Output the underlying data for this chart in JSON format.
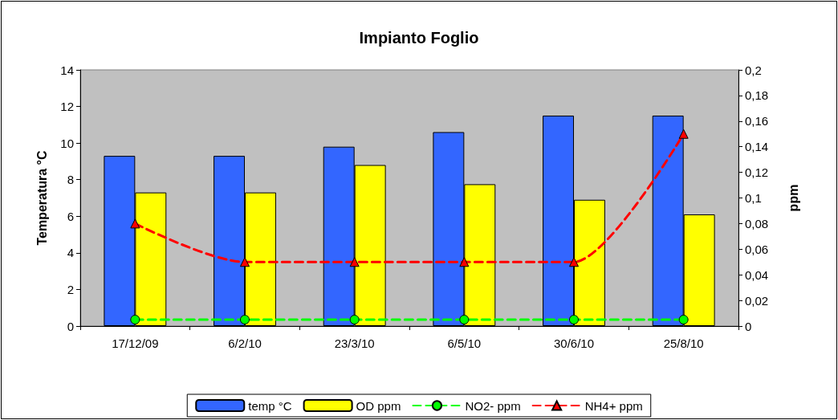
{
  "chart_data": {
    "type": "bar",
    "title": "Impianto Foglio",
    "ylabel": "Temperatura °C",
    "y2label": "ppm",
    "categories": [
      "17/12/09",
      "6/2/10",
      "23/3/10",
      "6/5/10",
      "30/6/10",
      "25/8/10"
    ],
    "series": [
      {
        "name": "temp °C",
        "color": "#3366ff",
        "values": [
          9.3,
          9.3,
          9.8,
          10.6,
          11.5,
          11.5
        ]
      },
      {
        "name": "OD ppm",
        "color": "#ffff00",
        "values": [
          7.3,
          7.3,
          8.8,
          7.75,
          6.9,
          6.1
        ]
      },
      {
        "name": "NO2- ppm",
        "type": "line",
        "axis": "y2",
        "color": "#00ff00",
        "marker": "circle",
        "line_style": "dashed",
        "values": [
          0.005,
          0.005,
          0.005,
          0.005,
          0.005,
          0.005
        ]
      },
      {
        "name": "NH4+ ppm",
        "type": "line",
        "axis": "y2",
        "color": "#ff0000",
        "marker": "triangle",
        "line_style": "dashed",
        "values": [
          0.08,
          0.05,
          0.05,
          0.05,
          0.05,
          0.15
        ]
      }
    ],
    "ylim": [
      0,
      14
    ],
    "yticks": [
      0,
      2,
      4,
      6,
      8,
      10,
      12,
      14
    ],
    "y2lim": [
      0,
      0.2
    ],
    "y2ticks": [
      0,
      {
        "value": 0.02,
        "label": "0,02"
      },
      {
        "value": 0.04,
        "label": "0,04"
      },
      {
        "value": 0.06,
        "label": "0,06"
      },
      {
        "value": 0.08,
        "label": "0,08"
      },
      {
        "value": 0.1,
        "label": "0,1"
      },
      {
        "value": 0.12,
        "label": "0,12"
      },
      {
        "value": 0.14,
        "label": "0,14"
      },
      {
        "value": 0.16,
        "label": "0,16"
      },
      {
        "value": 0.18,
        "label": "0,18"
      },
      {
        "value": 0.2,
        "label": "0,2"
      }
    ],
    "grid": false,
    "legend": "bottom"
  }
}
